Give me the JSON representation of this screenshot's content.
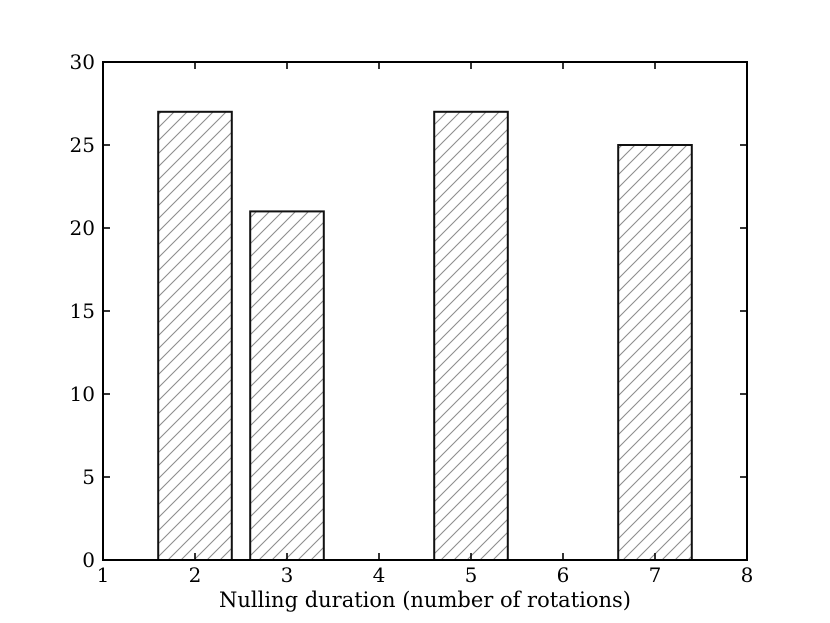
{
  "chart_data": {
    "type": "bar",
    "title": "",
    "xlabel": "Nulling duration (number of rotations)",
    "ylabel": "",
    "x": [
      2,
      3,
      5,
      7
    ],
    "values": [
      27,
      21,
      27,
      25
    ],
    "bar_width": 0.8,
    "xlim": [
      1,
      8
    ],
    "ylim": [
      0,
      30
    ],
    "x_ticks": [
      1,
      2,
      3,
      4,
      5,
      6,
      7,
      8
    ],
    "y_ticks": [
      0,
      5,
      10,
      15,
      20,
      25,
      30
    ],
    "grid": false,
    "legend": null,
    "tick_direction": "in",
    "hatch": "/",
    "colors": {
      "bar_fill": "#ffffff",
      "bar_edge": "#111111",
      "hatch_line": "#8a8a8a",
      "axis": "#000000",
      "text": "#000000",
      "background": "#ffffff"
    }
  }
}
